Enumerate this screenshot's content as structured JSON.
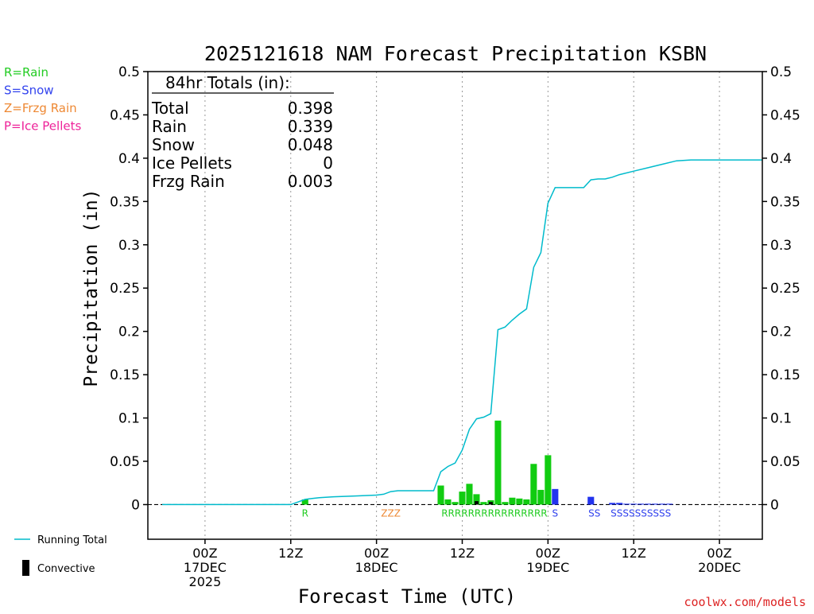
{
  "chart_data": {
    "type": "bar",
    "title": "2025121618 NAM Forecast Precipitation KSBN",
    "xlabel": "Forecast Time (UTC)",
    "ylabel": "Precipitation (in)",
    "ylim": [
      -0.04,
      0.5
    ],
    "y_ticks": [
      0,
      0.05,
      0.1,
      0.15,
      0.2,
      0.25,
      0.3,
      0.35,
      0.4,
      0.45,
      0.5
    ],
    "y_tick_labels": [
      "0",
      "0.05",
      "0.1",
      "0.15",
      "0.2",
      "0.25",
      "0.3",
      "0.35",
      "0.4",
      "0.45",
      "0.5"
    ],
    "x_units": "hours after 2025-12-16 18Z",
    "xlim": [
      -2,
      84
    ],
    "x_ticks": [
      {
        "hour": 6,
        "line1": "00Z",
        "line2": "17DEC",
        "line3": "2025"
      },
      {
        "hour": 18,
        "line1": "12Z",
        "line2": "",
        "line3": ""
      },
      {
        "hour": 30,
        "line1": "00Z",
        "line2": "18DEC",
        "line3": ""
      },
      {
        "hour": 42,
        "line1": "12Z",
        "line2": "",
        "line3": ""
      },
      {
        "hour": 54,
        "line1": "00Z",
        "line2": "19DEC",
        "line3": ""
      },
      {
        "hour": 66,
        "line1": "12Z",
        "line2": "",
        "line3": ""
      },
      {
        "hour": 78,
        "line1": "00Z",
        "line2": "20DEC",
        "line3": ""
      }
    ],
    "grid": "vertical dotted at 00Z/12Z",
    "totals_box": {
      "header": "84hr Totals (in):",
      "rows": [
        {
          "label": "Total",
          "value": "0.398"
        },
        {
          "label": "Rain",
          "value": "0.339"
        },
        {
          "label": "Snow",
          "value": "0.048"
        },
        {
          "label": "Ice Pellets",
          "value": "0"
        },
        {
          "label": "Frzg Rain",
          "value": "0.003"
        }
      ]
    },
    "type_legend": [
      {
        "text": "R=Rain",
        "color": "#22cc22"
      },
      {
        "text": "S=Snow",
        "color": "#3344ee"
      },
      {
        "text": "Z=Frzg Rain",
        "color": "#ee8833"
      },
      {
        "text": "P=Ice Pellets",
        "color": "#ee2299"
      }
    ],
    "series_legend": [
      {
        "text": "Running Total",
        "color": "#00bbcc",
        "kind": "line"
      },
      {
        "text": "Convective",
        "color": "#000000",
        "kind": "bar"
      }
    ],
    "bars": [
      {
        "hour": 20,
        "value": 0.006,
        "type": "rain"
      },
      {
        "hour": 39,
        "value": 0.022,
        "type": "rain"
      },
      {
        "hour": 40,
        "value": 0.006,
        "type": "rain"
      },
      {
        "hour": 41,
        "value": 0.003,
        "type": "rain"
      },
      {
        "hour": 42,
        "value": 0.015,
        "type": "rain"
      },
      {
        "hour": 43,
        "value": 0.024,
        "type": "rain"
      },
      {
        "hour": 44,
        "value": 0.012,
        "type": "rain"
      },
      {
        "hour": 45,
        "value": 0.003,
        "type": "rain"
      },
      {
        "hour": 46,
        "value": 0.005,
        "type": "rain"
      },
      {
        "hour": 47,
        "value": 0.097,
        "type": "rain"
      },
      {
        "hour": 48,
        "value": 0.003,
        "type": "rain"
      },
      {
        "hour": 49,
        "value": 0.008,
        "type": "rain"
      },
      {
        "hour": 50,
        "value": 0.007,
        "type": "rain"
      },
      {
        "hour": 51,
        "value": 0.006,
        "type": "rain"
      },
      {
        "hour": 52,
        "value": 0.047,
        "type": "rain"
      },
      {
        "hour": 53,
        "value": 0.017,
        "type": "rain"
      },
      {
        "hour": 54,
        "value": 0.057,
        "type": "rain"
      },
      {
        "hour": 55,
        "value": 0.018,
        "type": "snow"
      },
      {
        "hour": 60,
        "value": 0.009,
        "type": "snow"
      },
      {
        "hour": 63,
        "value": 0.002,
        "type": "snow"
      },
      {
        "hour": 64,
        "value": 0.002,
        "type": "snow"
      },
      {
        "hour": 65,
        "value": 0.001,
        "type": "snow"
      },
      {
        "hour": 66,
        "value": 0.001,
        "type": "snow"
      },
      {
        "hour": 67,
        "value": 0.001,
        "type": "snow"
      },
      {
        "hour": 68,
        "value": 0.001,
        "type": "snow"
      },
      {
        "hour": 69,
        "value": 0.001,
        "type": "snow"
      },
      {
        "hour": 70,
        "value": 0.001,
        "type": "snow"
      },
      {
        "hour": 71,
        "value": 0.001,
        "type": "snow"
      }
    ],
    "convective_bars": [
      {
        "hour": 44,
        "value": 0.004
      },
      {
        "hour": 46,
        "value": 0.003
      }
    ],
    "running_total": {
      "name": "Running Total",
      "points": [
        [
          0,
          0
        ],
        [
          18,
          0
        ],
        [
          19,
          0.003
        ],
        [
          20,
          0.006
        ],
        [
          21,
          0.007
        ],
        [
          22,
          0.008
        ],
        [
          24,
          0.009
        ],
        [
          27,
          0.01
        ],
        [
          30,
          0.011
        ],
        [
          31,
          0.012
        ],
        [
          32,
          0.015
        ],
        [
          33,
          0.016
        ],
        [
          34,
          0.016
        ],
        [
          35,
          0.016
        ],
        [
          36,
          0.016
        ],
        [
          37,
          0.016
        ],
        [
          38,
          0.016
        ],
        [
          39,
          0.038
        ],
        [
          40,
          0.044
        ],
        [
          41,
          0.048
        ],
        [
          42,
          0.063
        ],
        [
          43,
          0.087
        ],
        [
          44,
          0.099
        ],
        [
          45,
          0.101
        ],
        [
          46,
          0.105
        ],
        [
          47,
          0.202
        ],
        [
          48,
          0.205
        ],
        [
          49,
          0.213
        ],
        [
          50,
          0.22
        ],
        [
          51,
          0.226
        ],
        [
          52,
          0.274
        ],
        [
          53,
          0.291
        ],
        [
          54,
          0.348
        ],
        [
          55,
          0.366
        ],
        [
          56,
          0.366
        ],
        [
          57,
          0.366
        ],
        [
          58,
          0.366
        ],
        [
          59,
          0.366
        ],
        [
          60,
          0.375
        ],
        [
          61,
          0.376
        ],
        [
          62,
          0.376
        ],
        [
          63,
          0.378
        ],
        [
          64,
          0.381
        ],
        [
          66,
          0.385
        ],
        [
          68,
          0.389
        ],
        [
          70,
          0.393
        ],
        [
          72,
          0.397
        ],
        [
          74,
          0.398
        ],
        [
          84,
          0.398
        ]
      ]
    },
    "type_codes": [
      {
        "hour": 20,
        "text": "R",
        "color": "#22cc22"
      },
      {
        "hour": 32,
        "text": "ZZZ",
        "color": "#ee8833"
      },
      {
        "hour": 46.5,
        "text": "RRRRRRRRRRRRRRRR",
        "color": "#22cc22"
      },
      {
        "hour": 55,
        "text": "S",
        "color": "#3344ee"
      },
      {
        "hour": 60.5,
        "text": "SS",
        "color": "#3344ee"
      },
      {
        "hour": 67,
        "text": "SSSSSSSSSS",
        "color": "#3344ee"
      }
    ],
    "credit": "coolwx.com/models",
    "colors": {
      "rain": "#11cc11",
      "snow": "#2233ee",
      "frzg": "#ee8833",
      "ice": "#ee2299",
      "running_total": "#00bbcc",
      "convective": "#000000",
      "credit": "#dd2222"
    }
  }
}
